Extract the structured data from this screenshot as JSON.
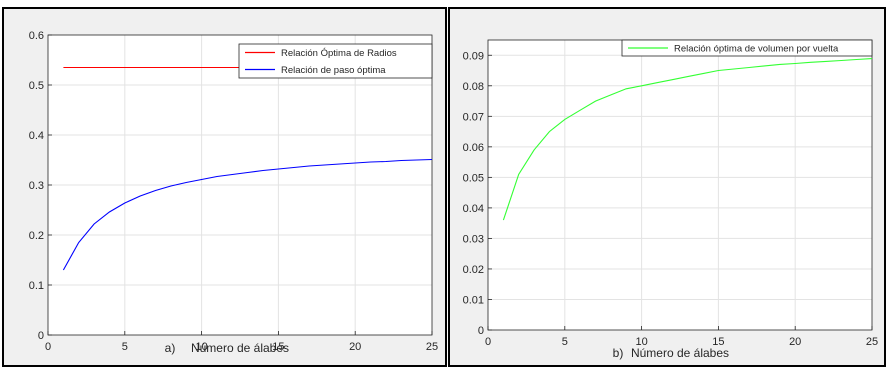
{
  "chart_data": [
    {
      "type": "line",
      "panel_label": "a)",
      "title": "",
      "xlabel": "Número de álabes",
      "ylabel": "",
      "xlim": [
        0,
        25
      ],
      "ylim": [
        0,
        0.6
      ],
      "xticks": [
        0,
        5,
        10,
        15,
        20,
        25
      ],
      "xtick_labels": [
        "0",
        "5",
        "10",
        "15",
        "20",
        "25"
      ],
      "yticks": [
        0,
        0.1,
        0.2,
        0.3,
        0.4,
        0.5,
        0.6
      ],
      "ytick_labels": [
        "0",
        "0.1",
        "0.2",
        "0.3",
        "0.4",
        "0.5",
        "0.6"
      ],
      "grid": true,
      "legend_position": "top-right",
      "series": [
        {
          "name": "Relación Óptima de Radios",
          "color": "#ff0000",
          "x": [
            1,
            2,
            3,
            4,
            5,
            6,
            7,
            8,
            9,
            10,
            11,
            12,
            13,
            14,
            15,
            16,
            17,
            18,
            19,
            20,
            21,
            22,
            23,
            24,
            25
          ],
          "y": [
            0.535,
            0.535,
            0.535,
            0.535,
            0.535,
            0.535,
            0.535,
            0.535,
            0.535,
            0.535,
            0.535,
            0.535,
            0.535,
            0.535,
            0.535,
            0.535,
            0.535,
            0.535,
            0.535,
            0.535,
            0.535,
            0.535,
            0.535,
            0.535,
            0.535
          ]
        },
        {
          "name": "Relación de paso óptima",
          "color": "#0000ff",
          "x": [
            1,
            2,
            3,
            4,
            5,
            6,
            7,
            8,
            9,
            10,
            11,
            12,
            13,
            14,
            15,
            16,
            17,
            18,
            19,
            20,
            21,
            22,
            23,
            24,
            25
          ],
          "y": [
            0.13,
            0.185,
            0.222,
            0.246,
            0.264,
            0.278,
            0.289,
            0.298,
            0.305,
            0.311,
            0.317,
            0.321,
            0.325,
            0.329,
            0.332,
            0.335,
            0.338,
            0.34,
            0.342,
            0.344,
            0.346,
            0.347,
            0.349,
            0.35,
            0.351
          ]
        }
      ]
    },
    {
      "type": "line",
      "panel_label": "b)",
      "title": "",
      "xlabel": "Número de álabes",
      "ylabel": "",
      "xlim": [
        0,
        25
      ],
      "ylim": [
        0,
        0.095
      ],
      "xticks": [
        0,
        5,
        10,
        15,
        20,
        25
      ],
      "xtick_labels": [
        "0",
        "5",
        "10",
        "15",
        "20",
        "25"
      ],
      "yticks": [
        0,
        0.01,
        0.02,
        0.03,
        0.04,
        0.05,
        0.06,
        0.07,
        0.08,
        0.09
      ],
      "ytick_labels": [
        "0",
        "0.01",
        "0.02",
        "0.03",
        "0.04",
        "0.05",
        "0.06",
        "0.07",
        "0.08",
        "0.09"
      ],
      "grid": true,
      "legend_position": "top-right",
      "series": [
        {
          "name": "Relación óptima de volumen por vuelta",
          "color": "#33ff33",
          "x": [
            1,
            2,
            3,
            4,
            5,
            6,
            7,
            8,
            9,
            10,
            11,
            12,
            13,
            14,
            15,
            16,
            17,
            18,
            19,
            20,
            21,
            22,
            23,
            24,
            25
          ],
          "y": [
            0.036,
            0.051,
            0.059,
            0.065,
            0.069,
            0.072,
            0.075,
            0.077,
            0.079,
            0.08,
            0.081,
            0.082,
            0.083,
            0.084,
            0.085,
            0.0855,
            0.086,
            0.0865,
            0.087,
            0.0873,
            0.0877,
            0.088,
            0.0883,
            0.0886,
            0.0889
          ]
        }
      ]
    }
  ]
}
